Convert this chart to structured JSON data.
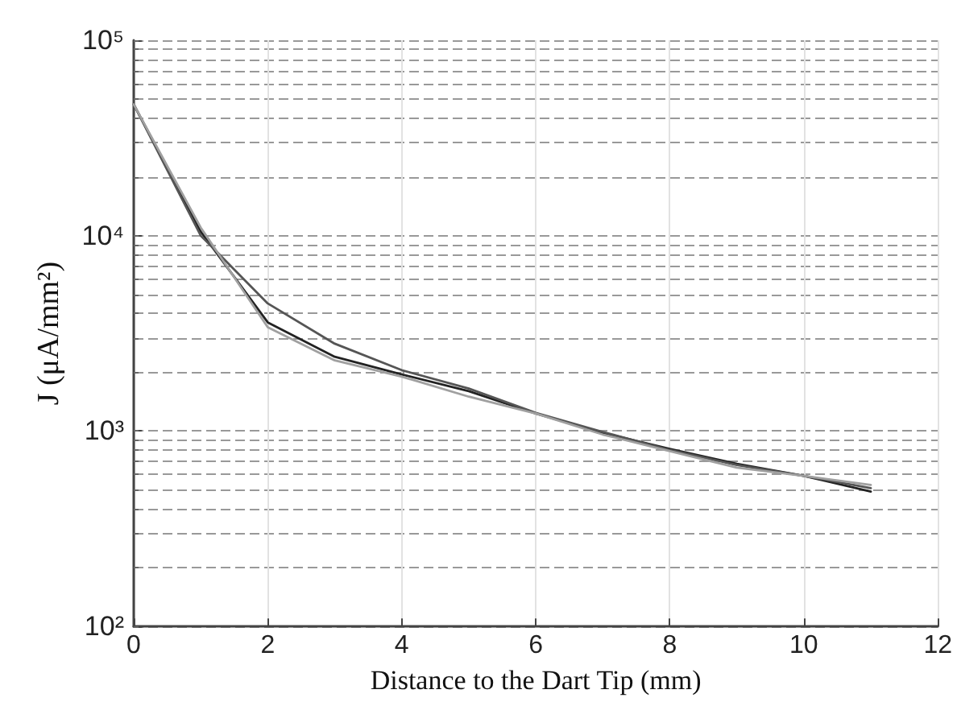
{
  "chart_data": {
    "type": "line",
    "xlabel": "Distance to the Dart Tip (mm)",
    "ylabel": "J (μA/mm²)",
    "x": [
      0,
      1,
      2,
      3,
      4,
      5,
      6,
      7,
      8,
      9,
      10,
      11
    ],
    "series": [
      {
        "color": "#222222",
        "values": [
          47000,
          10500,
          3600,
          2400,
          1950,
          1600,
          1230,
          980,
          810,
          680,
          590,
          490
        ]
      },
      {
        "color": "#555555",
        "values": [
          47000,
          10000,
          4500,
          2800,
          2050,
          1650,
          1240,
          990,
          800,
          670,
          590,
          510
        ]
      },
      {
        "color": "#a0a0a0",
        "values": [
          47000,
          11000,
          3400,
          2300,
          1900,
          1500,
          1230,
          960,
          790,
          650,
          590,
          530
        ]
      }
    ],
    "xlim": [
      0,
      12
    ],
    "xticks": [
      0,
      2,
      4,
      6,
      8,
      10,
      12
    ],
    "ylim": [
      100,
      100000
    ],
    "yticks": [
      {
        "value": 100,
        "label": "10²"
      },
      {
        "value": 1000,
        "label": "10³"
      },
      {
        "value": 10000,
        "label": "10⁴"
      },
      {
        "value": 100000,
        "label": "10⁵"
      }
    ],
    "log": "y",
    "grid": true,
    "marker": "none",
    "line_style": "solid"
  }
}
